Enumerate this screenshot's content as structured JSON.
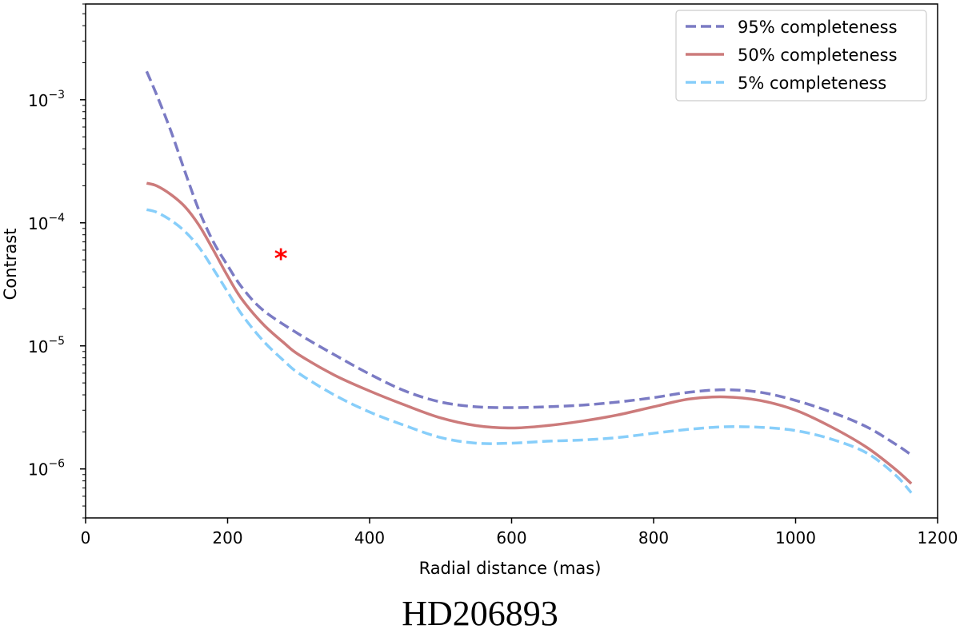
{
  "caption": "HD206893",
  "chart_data": {
    "type": "line",
    "xlabel": "Radial distance (mas)",
    "ylabel": "Contrast",
    "xlim": [
      0,
      1200
    ],
    "ylim": [
      4e-07,
      0.006
    ],
    "yscale": "log",
    "x_ticks": [
      0,
      200,
      400,
      600,
      800,
      1000,
      1200
    ],
    "y_ticks": [
      {
        "value": 1e-06,
        "base": "10",
        "exp": "−6"
      },
      {
        "value": 1e-05,
        "base": "10",
        "exp": "−5"
      },
      {
        "value": 0.0001,
        "base": "10",
        "exp": "−4"
      },
      {
        "value": 0.001,
        "base": "10",
        "exp": "−3"
      }
    ],
    "grid": false,
    "legend_position": "top-right",
    "series": [
      {
        "name": "95% completeness",
        "color": "#7b7bc4",
        "style": "dashed",
        "points": [
          [
            86,
            0.0017
          ],
          [
            100,
            0.0011
          ],
          [
            120,
            0.00056
          ],
          [
            140,
            0.00026
          ],
          [
            160,
            0.000125
          ],
          [
            180,
            7e-05
          ],
          [
            200,
            4.5e-05
          ],
          [
            220,
            3e-05
          ],
          [
            250,
            1.95e-05
          ],
          [
            300,
            1.25e-05
          ],
          [
            350,
            8.5e-06
          ],
          [
            400,
            5.9e-06
          ],
          [
            450,
            4.3e-06
          ],
          [
            500,
            3.5e-06
          ],
          [
            550,
            3.2e-06
          ],
          [
            600,
            3.15e-06
          ],
          [
            650,
            3.2e-06
          ],
          [
            700,
            3.3e-06
          ],
          [
            750,
            3.5e-06
          ],
          [
            800,
            3.8e-06
          ],
          [
            850,
            4.2e-06
          ],
          [
            900,
            4.4e-06
          ],
          [
            950,
            4.2e-06
          ],
          [
            1000,
            3.6e-06
          ],
          [
            1050,
            2.9e-06
          ],
          [
            1100,
            2.2e-06
          ],
          [
            1140,
            1.6e-06
          ],
          [
            1163,
            1.3e-06
          ]
        ]
      },
      {
        "name": "50% completeness",
        "color": "#cc7b7b",
        "style": "solid",
        "points": [
          [
            86,
            0.00021
          ],
          [
            100,
            0.0002
          ],
          [
            120,
            0.00017
          ],
          [
            140,
            0.000135
          ],
          [
            160,
            9.5e-05
          ],
          [
            180,
            6e-05
          ],
          [
            200,
            3.7e-05
          ],
          [
            220,
            2.4e-05
          ],
          [
            250,
            1.5e-05
          ],
          [
            280,
            1.05e-05
          ],
          [
            300,
            8.5e-06
          ],
          [
            350,
            5.8e-06
          ],
          [
            400,
            4.3e-06
          ],
          [
            450,
            3.3e-06
          ],
          [
            500,
            2.6e-06
          ],
          [
            550,
            2.25e-06
          ],
          [
            600,
            2.15e-06
          ],
          [
            650,
            2.25e-06
          ],
          [
            700,
            2.45e-06
          ],
          [
            750,
            2.75e-06
          ],
          [
            800,
            3.2e-06
          ],
          [
            850,
            3.7e-06
          ],
          [
            900,
            3.85e-06
          ],
          [
            950,
            3.6e-06
          ],
          [
            1000,
            3e-06
          ],
          [
            1050,
            2.2e-06
          ],
          [
            1100,
            1.5e-06
          ],
          [
            1140,
            1e-06
          ],
          [
            1163,
            7.6e-07
          ]
        ]
      },
      {
        "name": "5% completeness",
        "color": "#87cefa",
        "style": "dashed",
        "points": [
          [
            86,
            0.000128
          ],
          [
            100,
            0.000122
          ],
          [
            120,
            0.000105
          ],
          [
            140,
            8.5e-05
          ],
          [
            160,
            6.3e-05
          ],
          [
            180,
            4.2e-05
          ],
          [
            200,
            2.75e-05
          ],
          [
            220,
            1.8e-05
          ],
          [
            250,
            1.1e-05
          ],
          [
            280,
            7.5e-06
          ],
          [
            300,
            6e-06
          ],
          [
            350,
            4e-06
          ],
          [
            400,
            2.9e-06
          ],
          [
            450,
            2.25e-06
          ],
          [
            500,
            1.8e-06
          ],
          [
            550,
            1.62e-06
          ],
          [
            600,
            1.62e-06
          ],
          [
            650,
            1.68e-06
          ],
          [
            700,
            1.72e-06
          ],
          [
            750,
            1.8e-06
          ],
          [
            800,
            1.95e-06
          ],
          [
            850,
            2.1e-06
          ],
          [
            900,
            2.2e-06
          ],
          [
            950,
            2.18e-06
          ],
          [
            1000,
            2.05e-06
          ],
          [
            1050,
            1.75e-06
          ],
          [
            1100,
            1.35e-06
          ],
          [
            1140,
            9e-07
          ],
          [
            1163,
            6.4e-07
          ]
        ]
      }
    ],
    "markers": [
      {
        "symbol": "*",
        "x": 275,
        "y": 5.7e-05,
        "color": "#ff0000"
      }
    ]
  }
}
